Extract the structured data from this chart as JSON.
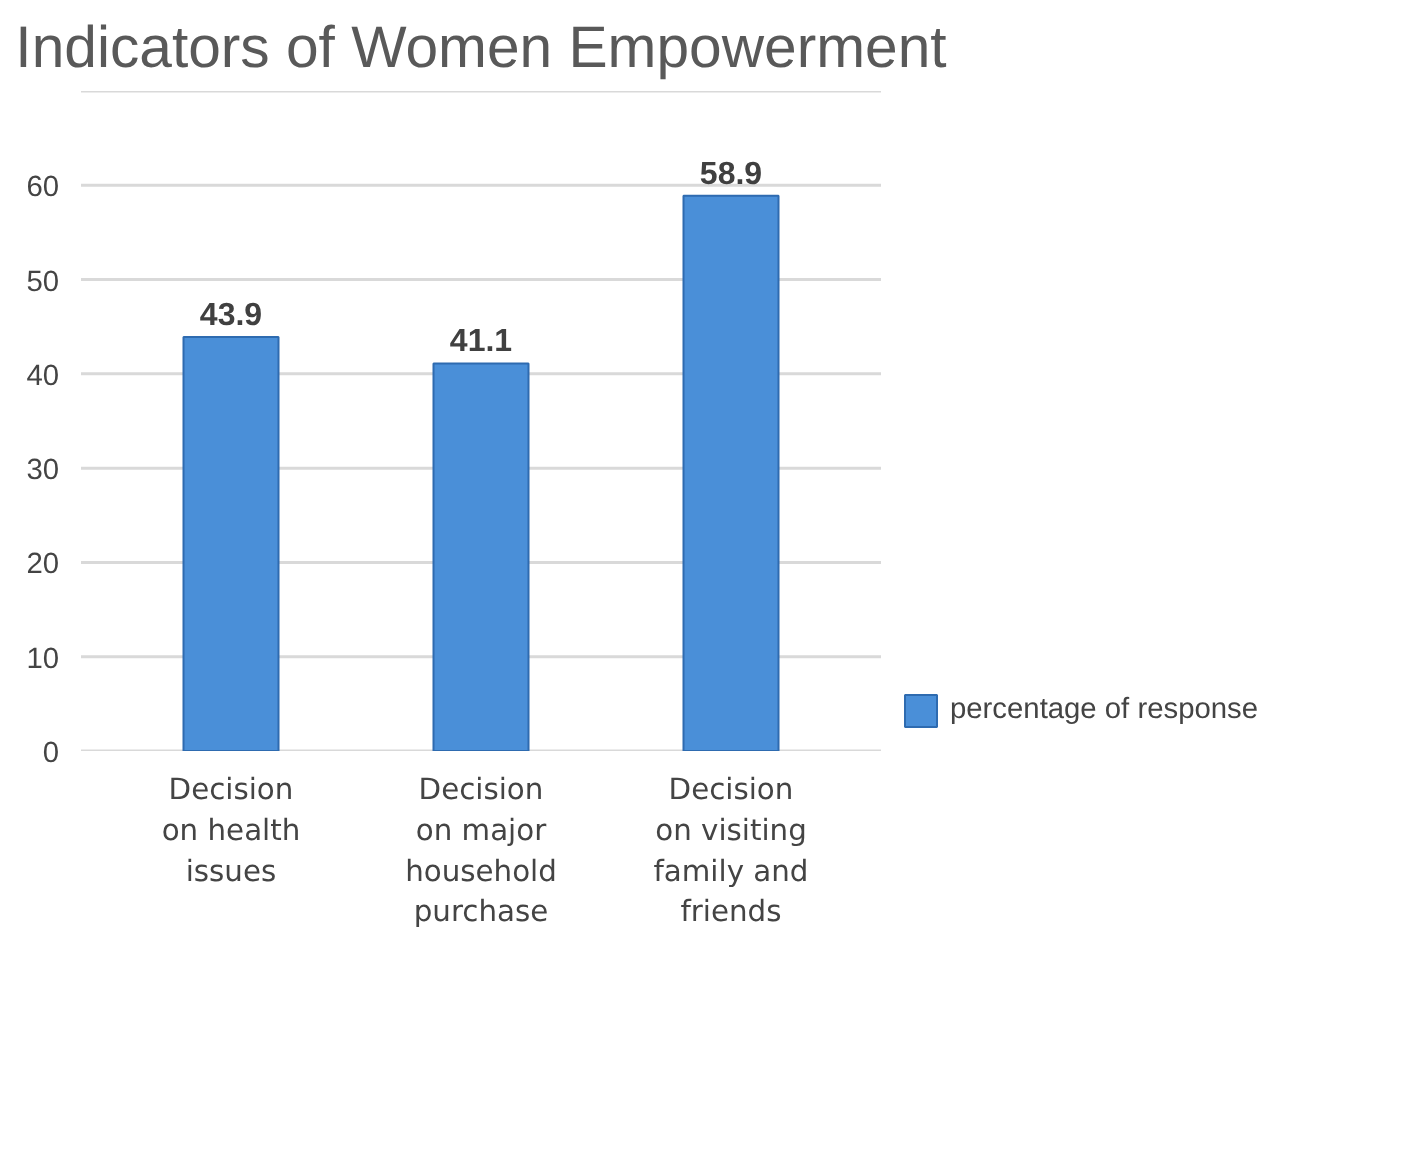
{
  "chart_data": {
    "type": "bar",
    "title": "Indicators of Women Empowerment",
    "categories": [
      "Decision\non health\nissues",
      "Decision\non major\nhousehold\npurchase",
      "Decision\non visiting\nfamily and\nfriends"
    ],
    "series": [
      {
        "name": "percentage of response",
        "color": "#4a8fd8",
        "values": [
          43.9,
          41.1,
          58.9
        ]
      }
    ],
    "ylim": [
      0,
      70
    ],
    "yticks": [
      0,
      10,
      20,
      30,
      40,
      50,
      60,
      {
        "value": 70,
        "label": null
      }
    ],
    "grid": "y",
    "legend": "right",
    "data_labels": true
  }
}
